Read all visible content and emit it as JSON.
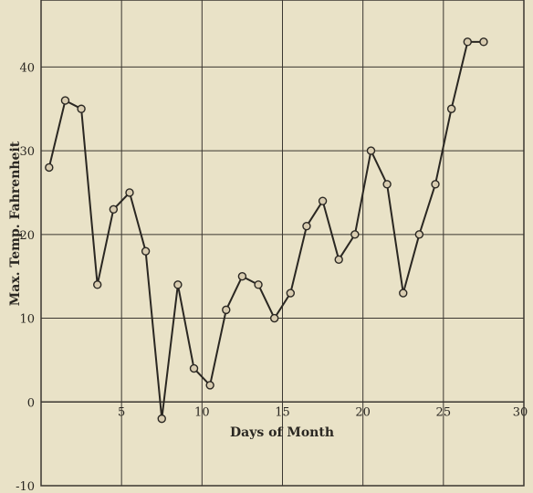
{
  "chart_data": {
    "type": "line",
    "title": "",
    "xlabel": "Days of Month",
    "ylabel": "Max. Temp. Fahrenheit",
    "xlim": [
      0,
      30
    ],
    "ylim": [
      -10,
      48
    ],
    "x_ticks": [
      5,
      10,
      15,
      20,
      25,
      30
    ],
    "y_ticks": [
      -10,
      0,
      10,
      20,
      30,
      40
    ],
    "grid": true,
    "legend": "none",
    "colors": {
      "background": "#e9e2c7",
      "grid": "#3a3630",
      "line": "#2a2722",
      "marker_fill": "#d8ccb0"
    },
    "series": [
      {
        "x": [
          0.5,
          1.5,
          2.5,
          3.5,
          4.5,
          5.5,
          6.5,
          7.5,
          8.5,
          9.5,
          10.5,
          11.5,
          12.5,
          13.5,
          14.5,
          15.5,
          16.5,
          17.5,
          18.5,
          19.5,
          20.5,
          21.5,
          22.5,
          23.5,
          24.5,
          25.5,
          26.5,
          27.5
        ],
        "values": [
          28,
          36,
          35,
          14,
          23,
          25,
          18,
          -2,
          14,
          4,
          2,
          11,
          15,
          14,
          10,
          13,
          21,
          24,
          17,
          20,
          30,
          26,
          13,
          20,
          26,
          35,
          43,
          43
        ]
      }
    ]
  }
}
